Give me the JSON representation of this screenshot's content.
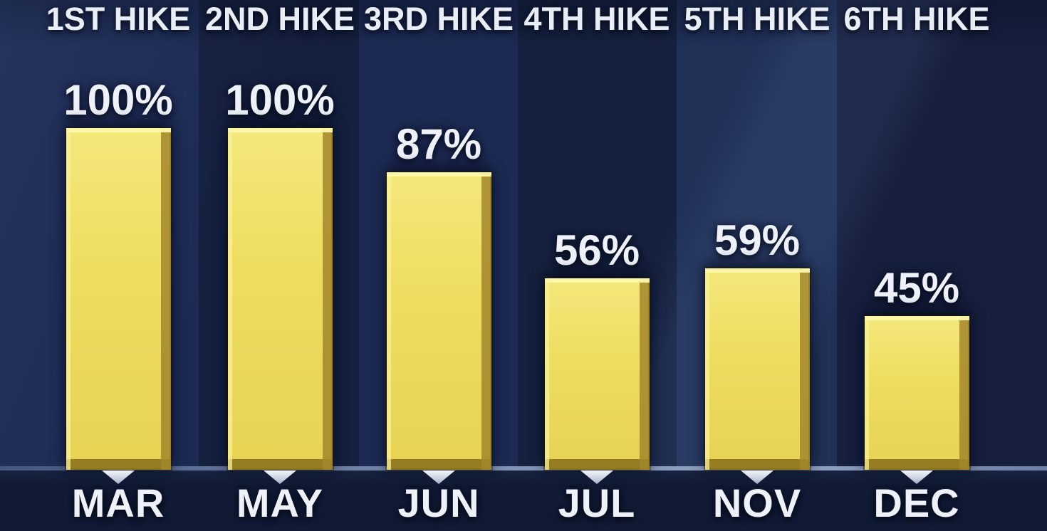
{
  "chart_data": {
    "type": "bar",
    "title": "",
    "group_labels": [
      "1ST HIKE",
      "2ND HIKE",
      "3RD HIKE",
      "4TH HIKE",
      "5TH HIKE",
      "6TH HIKE"
    ],
    "categories": [
      "MAR",
      "MAY",
      "JUN",
      "JUL",
      "NOV",
      "DEC"
    ],
    "values": [
      100,
      100,
      87,
      56,
      59,
      45
    ],
    "value_labels": [
      "100%",
      "100%",
      "87%",
      "56%",
      "59%",
      "45%"
    ],
    "unit": "%",
    "ylim": [
      0,
      100
    ],
    "grid": false,
    "legend": false,
    "colors": {
      "bar_gold": "#ecd95b",
      "bar_bevel_light": "#faf3a2",
      "bar_bevel_dark": "#9c8226",
      "background_light_band": "#1d2b54",
      "background_dark_band": "#15203f",
      "bottom_band": "#111b36",
      "baseline": "#8fa0bf",
      "text": "#eef2f8",
      "pointer": "#dbe1ec"
    }
  }
}
